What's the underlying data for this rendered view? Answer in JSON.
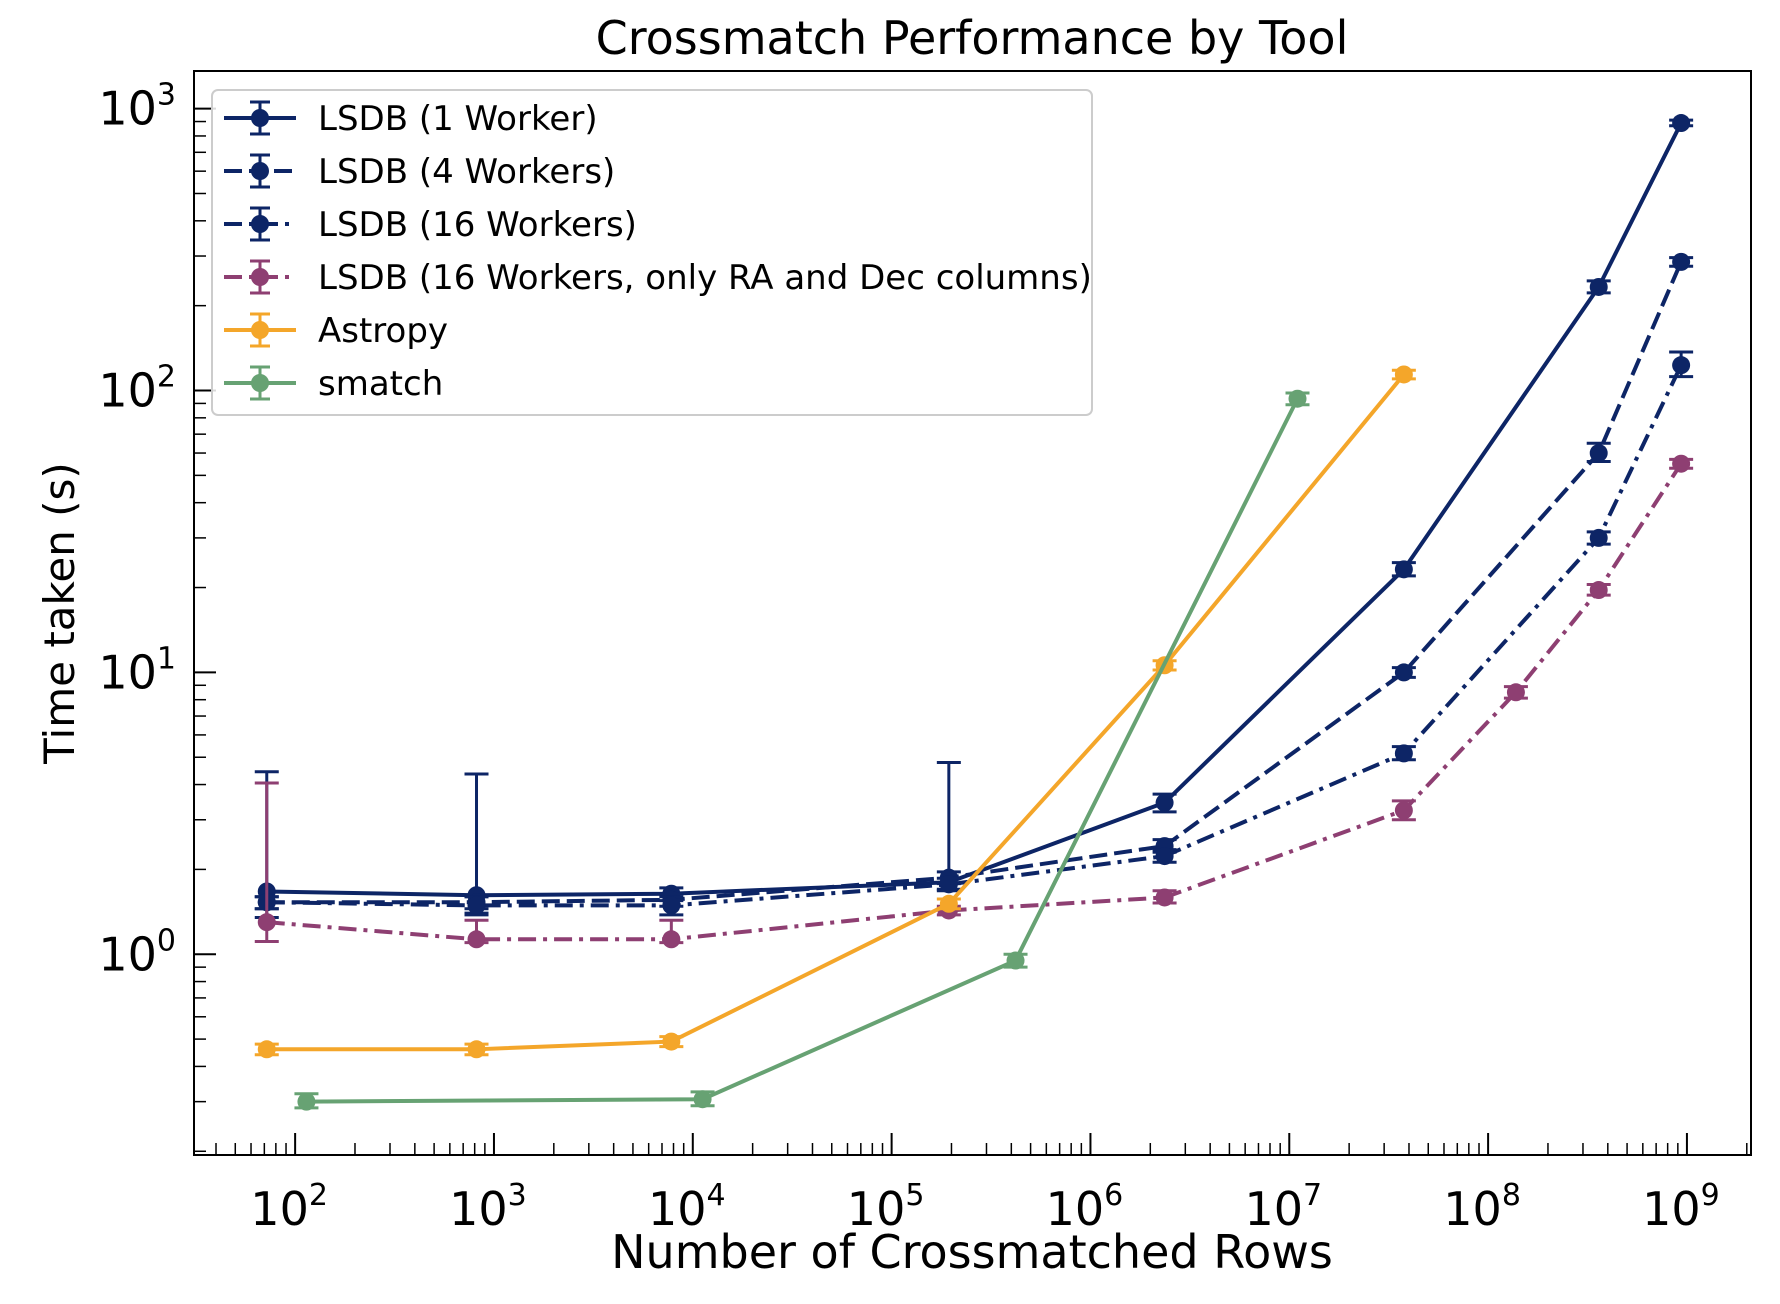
{
  "chart_data": {
    "type": "line",
    "title": "Crossmatch Performance by Tool",
    "xlabel": "Number of Crossmatched Rows",
    "ylabel": "Time taken (s)",
    "xscale": "log",
    "yscale": "log",
    "xlim": [
      31,
      2100000000.0
    ],
    "ylim": [
      0.194,
      1360
    ],
    "x_ticks": [
      {
        "value": 100.0,
        "exp": "2"
      },
      {
        "value": 1000.0,
        "exp": "3"
      },
      {
        "value": 10000.0,
        "exp": "4"
      },
      {
        "value": 100000.0,
        "exp": "5"
      },
      {
        "value": 1000000.0,
        "exp": "6"
      },
      {
        "value": 10000000.0,
        "exp": "7"
      },
      {
        "value": 100000000.0,
        "exp": "8"
      },
      {
        "value": 1000000000.0,
        "exp": "9"
      }
    ],
    "y_ticks": [
      {
        "value": 1,
        "exp": "0"
      },
      {
        "value": 10,
        "exp": "1"
      },
      {
        "value": 100,
        "exp": "2"
      },
      {
        "value": 1000,
        "exp": "3"
      }
    ],
    "tick_base": "10",
    "grid": false,
    "legend_position": "top-left",
    "series": [
      {
        "name": "LSDB (1 Worker)",
        "color": "#0d2566",
        "style": "solid",
        "x": [
          72,
          817,
          7800,
          194000,
          2360000,
          37700000,
          360000000,
          935000000
        ],
        "y": [
          1.67,
          1.62,
          1.64,
          1.8,
          3.45,
          23.2,
          233,
          889
        ],
        "err_low": [
          1.35,
          1.4,
          1.55,
          1.7,
          3.2,
          22,
          222,
          870
        ],
        "err_high": [
          4.44,
          4.36,
          1.72,
          4.79,
          3.7,
          24.5,
          245,
          910
        ]
      },
      {
        "name": "LSDB (4 Workers)",
        "color": "#0d2566",
        "style": "dashed",
        "x": [
          72,
          817,
          7800,
          194000,
          2360000,
          37700000,
          360000000,
          935000000
        ],
        "y": [
          1.53,
          1.53,
          1.56,
          1.87,
          2.42,
          10,
          60,
          286
        ],
        "err_low": [
          1.45,
          1.45,
          1.48,
          1.78,
          2.3,
          9.6,
          56,
          276
        ],
        "err_high": [
          1.6,
          1.6,
          1.64,
          1.96,
          2.55,
          10.4,
          65,
          296
        ]
      },
      {
        "name": "LSDB (16 Workers)",
        "color": "#0d2566",
        "style": "dashdot",
        "x": [
          72,
          817,
          7800,
          194000,
          2360000,
          37700000,
          360000000,
          935000000
        ],
        "y": [
          1.53,
          1.49,
          1.49,
          1.77,
          2.23,
          5.16,
          30,
          123
        ],
        "err_low": [
          1.45,
          1.38,
          1.38,
          1.68,
          2.12,
          4.9,
          28.5,
          112
        ],
        "err_high": [
          1.6,
          1.6,
          1.6,
          1.86,
          2.35,
          5.45,
          31.5,
          137
        ]
      },
      {
        "name": "LSDB (16 Workers, only RA and Dec columns)",
        "color": "#8e3f72",
        "style": "dashdot",
        "x": [
          72,
          817,
          7800,
          194000,
          2360000,
          37700000,
          138000000,
          360000000,
          935000000
        ],
        "y": [
          1.3,
          1.13,
          1.13,
          1.43,
          1.59,
          3.24,
          8.5,
          19.6,
          55
        ],
        "err_low": [
          1.11,
          1.1,
          1.1,
          1.38,
          1.52,
          3.0,
          8.1,
          18.8,
          53
        ],
        "err_high": [
          4.05,
          1.32,
          1.32,
          1.48,
          1.68,
          3.5,
          8.9,
          20.5,
          57
        ]
      },
      {
        "name": "Astropy",
        "color": "#f4a62a",
        "style": "solid",
        "x": [
          72,
          817,
          7800,
          194000,
          2360000,
          37700000
        ],
        "y": [
          0.46,
          0.46,
          0.49,
          1.51,
          10.6,
          114
        ],
        "err_low": [
          0.44,
          0.44,
          0.47,
          1.45,
          10.2,
          110
        ],
        "err_high": [
          0.48,
          0.48,
          0.51,
          1.57,
          11,
          118
        ]
      },
      {
        "name": "smatch",
        "color": "#67a273",
        "style": "solid",
        "x": [
          114,
          11200,
          420000,
          11000000
        ],
        "y": [
          0.3,
          0.306,
          0.95,
          93.5
        ],
        "err_low": [
          0.285,
          0.29,
          0.9,
          89
        ],
        "err_high": [
          0.32,
          0.325,
          1.0,
          98
        ]
      }
    ]
  }
}
